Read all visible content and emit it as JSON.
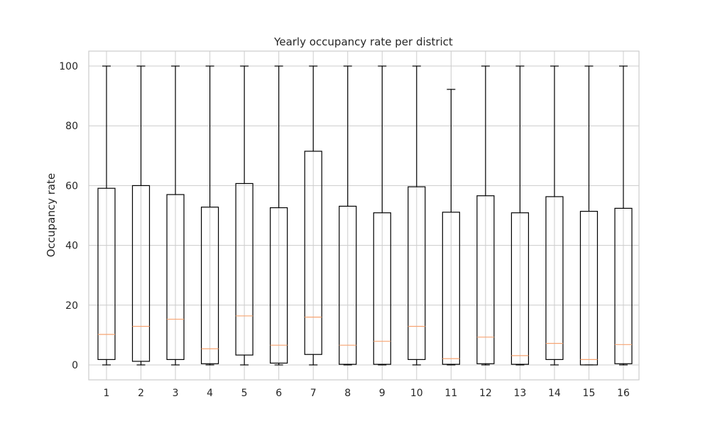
{
  "chart_data": {
    "type": "boxplot",
    "title": "Yearly occupancy rate per district",
    "xlabel": "",
    "ylabel": "Occupancy rate",
    "ylim": [
      -5,
      105
    ],
    "yticks": [
      0,
      20,
      40,
      60,
      80,
      100
    ],
    "grid": true,
    "categories": [
      "1",
      "2",
      "3",
      "4",
      "5",
      "6",
      "7",
      "8",
      "9",
      "10",
      "11",
      "12",
      "13",
      "14",
      "15",
      "16"
    ],
    "boxes": [
      {
        "whislo": 0,
        "q1": 1.8,
        "med": 10.2,
        "q3": 59.1,
        "whishi": 100
      },
      {
        "whislo": 0,
        "q1": 1.2,
        "med": 12.9,
        "q3": 60.0,
        "whishi": 100
      },
      {
        "whislo": 0,
        "q1": 1.8,
        "med": 15.3,
        "q3": 57.0,
        "whishi": 100
      },
      {
        "whislo": 0,
        "q1": 0.4,
        "med": 5.4,
        "q3": 52.8,
        "whishi": 100
      },
      {
        "whislo": 0,
        "q1": 3.3,
        "med": 16.4,
        "q3": 60.7,
        "whishi": 100
      },
      {
        "whislo": 0,
        "q1": 0.6,
        "med": 6.6,
        "q3": 52.6,
        "whishi": 100
      },
      {
        "whislo": 0,
        "q1": 3.5,
        "med": 16.0,
        "q3": 71.5,
        "whishi": 100
      },
      {
        "whislo": 0,
        "q1": 0.2,
        "med": 6.6,
        "q3": 53.1,
        "whishi": 100
      },
      {
        "whislo": 0,
        "q1": 0.2,
        "med": 7.9,
        "q3": 50.9,
        "whishi": 100
      },
      {
        "whislo": 0,
        "q1": 1.8,
        "med": 12.9,
        "q3": 59.6,
        "whishi": 100
      },
      {
        "whislo": 0,
        "q1": 0.2,
        "med": 2.1,
        "q3": 51.1,
        "whishi": 92.2
      },
      {
        "whislo": 0,
        "q1": 0.4,
        "med": 9.3,
        "q3": 56.6,
        "whishi": 100
      },
      {
        "whislo": 0,
        "q1": 0.2,
        "med": 3.1,
        "q3": 50.9,
        "whishi": 100
      },
      {
        "whislo": 0,
        "q1": 1.8,
        "med": 7.2,
        "q3": 56.3,
        "whishi": 100
      },
      {
        "whislo": 0,
        "q1": 0.0,
        "med": 1.8,
        "q3": 51.4,
        "whishi": 100
      },
      {
        "whislo": 0,
        "q1": 0.4,
        "med": 6.8,
        "q3": 52.4,
        "whishi": 100
      }
    ],
    "colors": {
      "box": "#000000",
      "median": "#f7a472",
      "grid": "#cccccc",
      "spine": "#cccccc",
      "text": "#262626"
    }
  }
}
